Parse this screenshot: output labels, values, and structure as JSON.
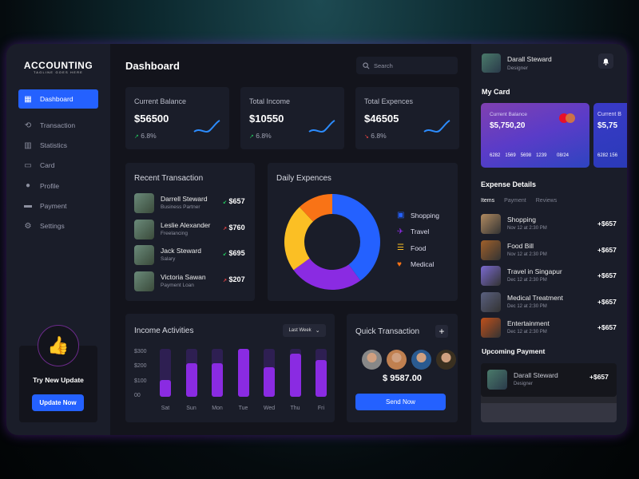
{
  "sidebar": {
    "logo": "ACCOUNTING",
    "tagline": "TAGLINE GOES HERE",
    "items": [
      {
        "label": "Dashboard",
        "icon": "dashboard-icon",
        "active": true
      },
      {
        "label": "Transaction",
        "icon": "refresh-icon"
      },
      {
        "label": "Statistics",
        "icon": "bar-chart-icon"
      },
      {
        "label": "Card",
        "icon": "credit-card-icon"
      },
      {
        "label": "Profile",
        "icon": "user-icon"
      },
      {
        "label": "Payment",
        "icon": "wallet-icon"
      },
      {
        "label": "Settings",
        "icon": "gear-icon"
      }
    ],
    "promo": {
      "title": "Try New Update",
      "button": "Update Now",
      "icon": "thumbs-up-icon"
    }
  },
  "header": {
    "title": "Dashboard",
    "search_placeholder": "Search"
  },
  "stats": [
    {
      "label": "Current Balance",
      "value": "$56500",
      "change": "6.8%",
      "trend": "up"
    },
    {
      "label": "Total Income",
      "value": "$10550",
      "change": "6.8%",
      "trend": "up"
    },
    {
      "label": "Total Expences",
      "value": "$46505",
      "change": "6.8%",
      "trend": "down"
    }
  ],
  "recent": {
    "title": "Recent Transaction",
    "items": [
      {
        "name": "Darrell Steward",
        "sub": "Business Partner",
        "amount": "$657",
        "trend": "down"
      },
      {
        "name": "Leslie Alexander",
        "sub": "Freelancing",
        "amount": "$760",
        "trend": "up"
      },
      {
        "name": "Jack Steward",
        "sub": "Salary",
        "amount": "$695",
        "trend": "down"
      },
      {
        "name": "Victoria Sawan",
        "sub": "Payment Loan",
        "amount": "$207",
        "trend": "up"
      }
    ]
  },
  "colors": {
    "accent": "#2461ff",
    "purple": "#8a2be2",
    "yellow": "#fbbf24",
    "orange": "#f97316",
    "up": "#22c55e",
    "down": "#ef4444"
  },
  "chart_data": [
    {
      "type": "pie",
      "title": "Daily Expences",
      "categories": [
        "Shopping",
        "Travel",
        "Food",
        "Medical"
      ],
      "values": [
        40,
        25,
        23,
        12
      ],
      "colors": [
        "#2461ff",
        "#8a2be2",
        "#fbbf24",
        "#f97316"
      ],
      "legend": "right",
      "donut": true
    },
    {
      "type": "bar",
      "title": "Income Activities",
      "categories": [
        "Sat",
        "Sun",
        "Mon",
        "Tue",
        "Wed",
        "Thu",
        "Fri"
      ],
      "values": [
        115,
        230,
        230,
        325,
        200,
        295,
        250
      ],
      "max": 325,
      "yticks": [
        "$300",
        "$200",
        "$100",
        "00"
      ],
      "ylim": [
        0,
        325
      ],
      "filter": "Last Week"
    }
  ],
  "quick": {
    "title": "Quick Transaction",
    "amount": "$ 9587.00",
    "button": "Send Now"
  },
  "profile": {
    "name": "Darall Steward",
    "role": "Designer"
  },
  "mycard": {
    "title": "My Card",
    "label": "Current Balance",
    "balance": "$5,750,20",
    "number": [
      "6282",
      "1569",
      "5698",
      "1239"
    ],
    "expiry": "08/24",
    "label2": "Current B",
    "balance2": "$5,75",
    "number2": "6282 156"
  },
  "expense": {
    "title": "Expense Details",
    "tabs": [
      "Items",
      "Payment",
      "Reviews"
    ],
    "items": [
      {
        "name": "Shopping",
        "date": "Nov 12 at 2:30 PM",
        "amount": "+$657",
        "color": "#b08a60"
      },
      {
        "name": "Food Bill",
        "date": "Nov 12 at 2:30 PM",
        "amount": "+$657",
        "color": "#a0602a"
      },
      {
        "name": "Travel in Singapur",
        "date": "Dec 12 at 2:30 PM",
        "amount": "+$657",
        "color": "#7a6ad0"
      },
      {
        "name": "Medical Treatment",
        "date": "Dec 12 at 2:30 PM",
        "amount": "+$657",
        "color": "#5a6080"
      },
      {
        "name": "Entertainment",
        "date": "Dec 12 at 2:30 PM",
        "amount": "+$657",
        "color": "#c0501a"
      }
    ]
  },
  "upcoming": {
    "title": "Upcoming Payment",
    "name": "Darall Steward",
    "role": "Designer",
    "amount": "+$657"
  }
}
